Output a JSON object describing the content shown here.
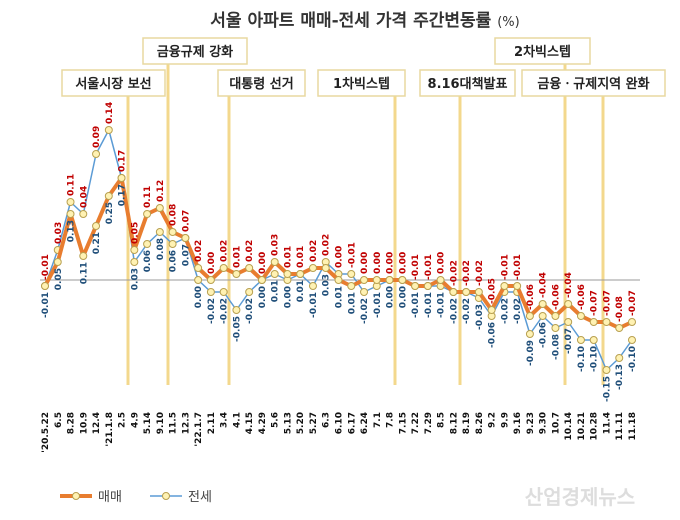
{
  "chart_data": {
    "type": "line",
    "title": "서울 아파트 매매-전세 가격 주간변동률",
    "unit": "(%)",
    "categories": [
      "'20.5.22",
      "6.5",
      "8.28",
      "10.9",
      "12.4",
      "'21.1.8",
      "2.5",
      "4.9",
      "5.14",
      "9.10",
      "11.5",
      "12.3",
      "'22.1.7",
      "2.11",
      "3.4",
      "4.1",
      "4.15",
      "4.29",
      "5.6",
      "5.13",
      "5.20",
      "5.27",
      "6.3",
      "6.10",
      "6.17",
      "6.24",
      "7.1",
      "7.8",
      "7.15",
      "7.22",
      "7.29",
      "8.5",
      "8.12",
      "8.19",
      "8.26",
      "9.2",
      "9.9",
      "9.16",
      "9.23",
      "9.30",
      "10.7",
      "10.14",
      "10.21",
      "10.28",
      "11.4",
      "11.11",
      "11.18"
    ],
    "series": [
      {
        "name": "매매",
        "color": "#e87d2f",
        "values": [
          -0.01,
          0.03,
          0.11,
          0.04,
          0.09,
          0.14,
          0.17,
          0.05,
          0.11,
          0.12,
          0.08,
          0.07,
          0.02,
          0.0,
          0.02,
          0.01,
          0.02,
          0.0,
          0.03,
          0.01,
          0.01,
          0.02,
          0.02,
          0.0,
          -0.01,
          0.0,
          0.0,
          0.0,
          0.0,
          -0.01,
          -0.01,
          0.0,
          -0.02,
          -0.02,
          -0.02,
          -0.05,
          -0.01,
          -0.01,
          -0.06,
          -0.04,
          -0.06,
          -0.04,
          -0.06,
          -0.07,
          -0.07,
          -0.08,
          -0.07
        ]
      },
      {
        "name": "전세",
        "color": "#5b9bd5",
        "values": [
          -0.01,
          0.05,
          0.13,
          0.11,
          0.21,
          0.25,
          0.17,
          0.03,
          0.06,
          0.08,
          0.06,
          0.07,
          0.0,
          -0.02,
          -0.02,
          -0.05,
          -0.02,
          0.0,
          0.01,
          0.0,
          0.01,
          -0.01,
          0.03,
          0.01,
          0.01,
          -0.02,
          -0.01,
          0.0,
          0.0,
          -0.01,
          -0.01,
          -0.01,
          -0.02,
          -0.02,
          -0.03,
          -0.06,
          -0.02,
          -0.02,
          -0.09,
          -0.06,
          -0.08,
          -0.07,
          -0.1,
          -0.1,
          -0.15,
          -0.13,
          -0.1
        ]
      }
    ],
    "annotations": [
      "서울시장 보선",
      "금융규제 강화",
      "대통령 선거",
      "1차빅스텝",
      "8.16대책발표",
      "2차빅스텝",
      "금융ㆍ규제지역 완화"
    ],
    "legend_position": "bottom-left",
    "grid": false
  },
  "watermark": "산업경제뉴스"
}
